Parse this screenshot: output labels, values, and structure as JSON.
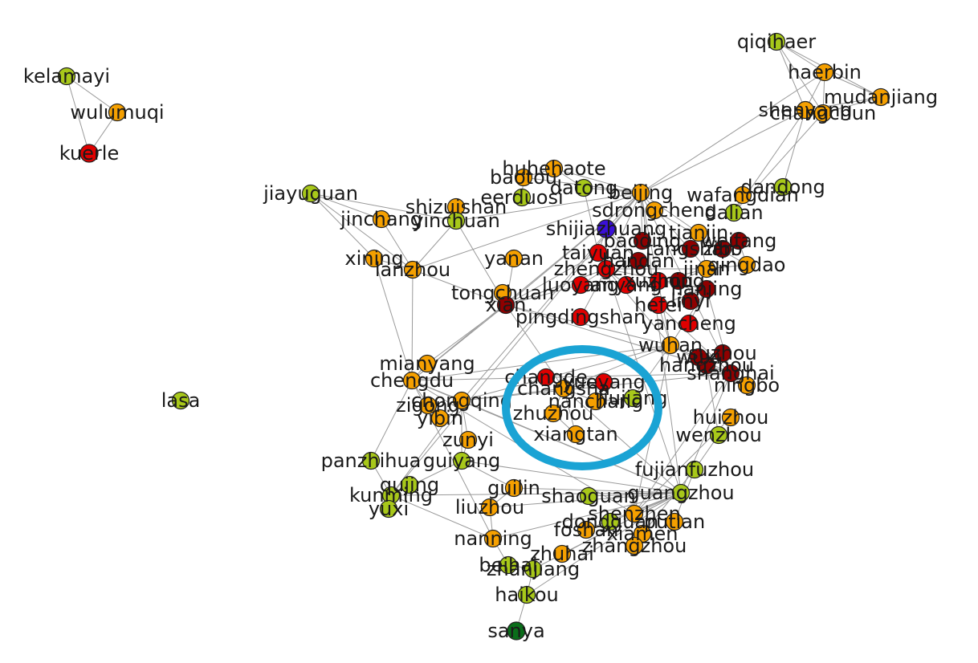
{
  "colors": {
    "edge": "#9a9a9a",
    "red": "#e00000",
    "darkred": "#900000",
    "orange": "#f5a000",
    "yellowgreen": "#a8c81a",
    "blue": "#3a10d8",
    "green": "#0a6e1a",
    "highlight": "#1aa3d4"
  },
  "nodes": [
    {
      "label": "kelamayi",
      "color": "yellowgreen"
    },
    {
      "label": "wulumuqi",
      "color": "orange"
    },
    {
      "label": "kuerle",
      "color": "red"
    },
    {
      "label": "jiayuguan",
      "color": "yellowgreen"
    },
    {
      "label": "lasa",
      "color": "yellowgreen"
    },
    {
      "label": "qiqihaer",
      "color": "yellowgreen"
    },
    {
      "label": "haerbin",
      "color": "orange"
    },
    {
      "label": "mudanjiang",
      "color": "orange"
    },
    {
      "label": "changchun",
      "color": "orange"
    },
    {
      "label": "shenyang",
      "color": "orange"
    },
    {
      "label": "huhehaote",
      "color": "orange"
    },
    {
      "label": "baotou",
      "color": "orange"
    },
    {
      "label": "eerduosi",
      "color": "yellowgreen"
    },
    {
      "label": "datong",
      "color": "yellowgreen"
    },
    {
      "label": "beijing",
      "color": "orange"
    },
    {
      "label": "shizuishan",
      "color": "orange"
    },
    {
      "label": "jinchang",
      "color": "orange"
    },
    {
      "label": "yinchuan",
      "color": "yellowgreen"
    },
    {
      "label": "sdrongcheng",
      "color": "orange"
    },
    {
      "label": "wafangdian",
      "color": "orange"
    },
    {
      "label": "dandong",
      "color": "yellowgreen"
    },
    {
      "label": "dalian",
      "color": "yellowgreen"
    },
    {
      "label": "shijiazhuang",
      "color": "blue"
    },
    {
      "label": "xining",
      "color": "orange"
    },
    {
      "label": "lanzhou",
      "color": "orange"
    },
    {
      "label": "yanan",
      "color": "orange"
    },
    {
      "label": "tongchuan",
      "color": "orange"
    },
    {
      "label": "pingdingshan",
      "color": "red"
    },
    {
      "label": "yancheng",
      "color": "red"
    },
    {
      "label": "mianyang",
      "color": "orange"
    },
    {
      "label": "chengdu",
      "color": "orange"
    },
    {
      "label": "chongqing",
      "color": "orange"
    },
    {
      "label": "zigong",
      "color": "orange"
    },
    {
      "label": "yibin",
      "color": "orange"
    },
    {
      "label": "zunyi",
      "color": "orange"
    },
    {
      "label": "guiyang",
      "color": "yellowgreen"
    },
    {
      "label": "panzhihua",
      "color": "yellowgreen"
    },
    {
      "label": "kunming",
      "color": "yellowgreen"
    },
    {
      "label": "qujing",
      "color": "yellowgreen"
    },
    {
      "label": "yuxi",
      "color": "yellowgreen"
    },
    {
      "label": "changde",
      "color": "red"
    },
    {
      "label": "yueyang",
      "color": "red"
    },
    {
      "label": "changsha",
      "color": "orange"
    },
    {
      "label": "jiujiang",
      "color": "yellowgreen"
    },
    {
      "label": "nanchang",
      "color": "orange"
    },
    {
      "label": "zhuzhou",
      "color": "orange"
    },
    {
      "label": "xiangtan",
      "color": "orange"
    },
    {
      "label": "wenzhou",
      "color": "yellowgreen"
    },
    {
      "label": "fujianfuzhou",
      "color": "yellowgreen"
    },
    {
      "label": "guangzhou",
      "color": "yellowgreen"
    },
    {
      "label": "shaoguan",
      "color": "yellowgreen"
    },
    {
      "label": "guilin",
      "color": "orange"
    },
    {
      "label": "liuzhou",
      "color": "orange"
    },
    {
      "label": "nanning",
      "color": "orange"
    },
    {
      "label": "beihai",
      "color": "yellowgreen"
    },
    {
      "label": "zhanjiang",
      "color": "yellowgreen"
    },
    {
      "label": "haikou",
      "color": "yellowgreen"
    },
    {
      "label": "sanya",
      "color": "green"
    },
    {
      "label": "shenzhen",
      "color": "orange"
    },
    {
      "label": "putian",
      "color": "orange"
    },
    {
      "label": "xiamen",
      "color": "orange"
    },
    {
      "label": "foshan",
      "color": "orange"
    },
    {
      "label": "dongguan",
      "color": "yellowgreen"
    },
    {
      "label": "zhuhai",
      "color": "orange"
    },
    {
      "label": "zhangzhou",
      "color": "orange"
    },
    {
      "label": "huizhou",
      "color": "orange"
    },
    {
      "label": "jinan",
      "color": "orange"
    },
    {
      "label": "qingdao",
      "color": "orange"
    },
    {
      "label": "tianjin",
      "color": "orange"
    },
    {
      "label": "zibo",
      "color": "darkred"
    },
    {
      "label": "weifang",
      "color": "darkred"
    },
    {
      "label": "zhengzhou",
      "color": "red"
    },
    {
      "label": "luoyang",
      "color": "red"
    },
    {
      "label": "xian",
      "color": "darkred"
    },
    {
      "label": "hefei",
      "color": "red"
    },
    {
      "label": "nanjing",
      "color": "darkred"
    },
    {
      "label": "wuhan",
      "color": "orange"
    },
    {
      "label": "suzhou",
      "color": "darkred"
    },
    {
      "label": "hangzhou",
      "color": "darkred"
    },
    {
      "label": "shanghai",
      "color": "darkred"
    },
    {
      "label": "ningbo",
      "color": "orange"
    },
    {
      "label": "wuxi",
      "color": "darkred"
    },
    {
      "label": "xuzhou",
      "color": "red"
    },
    {
      "label": "taiyuan",
      "color": "red"
    },
    {
      "label": "anyang",
      "color": "red"
    },
    {
      "label": "handan",
      "color": "darkred"
    },
    {
      "label": "baoding",
      "color": "darkred"
    },
    {
      "label": "tangshan",
      "color": "darkred"
    },
    {
      "label": "jining",
      "color": "darkred"
    },
    {
      "label": "linyi",
      "color": "darkred"
    }
  ],
  "edges": [
    [
      "kelamayi",
      "wulumuqi"
    ],
    [
      "kelamayi",
      "kuerle"
    ],
    [
      "wulumuqi",
      "kuerle"
    ],
    [
      "qiqihaer",
      "haerbin"
    ],
    [
      "qiqihaer",
      "changchun"
    ],
    [
      "qiqihaer",
      "mudanjiang"
    ],
    [
      "qiqihaer",
      "shenyang"
    ],
    [
      "haerbin",
      "changchun"
    ],
    [
      "haerbin",
      "mudanjiang"
    ],
    [
      "changchun",
      "mudanjiang"
    ],
    [
      "haerbin",
      "shenyang"
    ],
    [
      "changchun",
      "shenyang"
    ],
    [
      "mudanjiang",
      "shenyang"
    ],
    [
      "haerbin",
      "beijing"
    ],
    [
      "changchun",
      "dalian"
    ],
    [
      "shenyang",
      "dalian"
    ],
    [
      "shenyang",
      "beijing"
    ],
    [
      "dandong",
      "shenyang"
    ],
    [
      "wafangdian",
      "dalian"
    ],
    [
      "jiayuguan",
      "jinchang"
    ],
    [
      "jiayuguan",
      "lanzhou"
    ],
    [
      "jiayuguan",
      "yinchuan"
    ],
    [
      "jiayuguan",
      "xining"
    ],
    [
      "jinchang",
      "lanzhou"
    ],
    [
      "xining",
      "lanzhou"
    ],
    [
      "lanzhou",
      "yinchuan"
    ],
    [
      "lanzhou",
      "xian"
    ],
    [
      "lanzhou",
      "chengdu"
    ],
    [
      "lanzhou",
      "beijing"
    ],
    [
      "xining",
      "chengdu"
    ],
    [
      "shizuishan",
      "yinchuan"
    ],
    [
      "yinchuan",
      "beijing"
    ],
    [
      "yinchuan",
      "xian"
    ],
    [
      "huhehaote",
      "beijing"
    ],
    [
      "baotou",
      "beijing"
    ],
    [
      "baotou",
      "huhehaote"
    ],
    [
      "eerduosi",
      "baotou"
    ],
    [
      "datong",
      "beijing"
    ],
    [
      "datong",
      "taiyuan"
    ],
    [
      "huhehaote",
      "datong"
    ],
    [
      "beijing",
      "shijiazhuang"
    ],
    [
      "beijing",
      "tianjin"
    ],
    [
      "beijing",
      "jinan"
    ],
    [
      "beijing",
      "shanghai"
    ],
    [
      "beijing",
      "guangzhou"
    ],
    [
      "beijing",
      "wuhan"
    ],
    [
      "beijing",
      "zhengzhou"
    ],
    [
      "shijiazhuang",
      "taiyuan"
    ],
    [
      "shijiazhuang",
      "zhengzhou"
    ],
    [
      "tianjin",
      "jinan"
    ],
    [
      "jinan",
      "qingdao"
    ],
    [
      "zibo",
      "weifang"
    ],
    [
      "weifang",
      "qingdao"
    ],
    [
      "jinan",
      "xuzhou"
    ],
    [
      "xuzhou",
      "nanjing"
    ],
    [
      "nanjing",
      "shanghai"
    ],
    [
      "suzhou",
      "shanghai"
    ],
    [
      "wuxi",
      "suzhou"
    ],
    [
      "hangzhou",
      "shanghai"
    ],
    [
      "ningbo",
      "hangzhou"
    ],
    [
      "wenzhou",
      "hangzhou"
    ],
    [
      "fujianfuzhou",
      "wenzhou"
    ],
    [
      "fujianfuzhou",
      "xiamen"
    ],
    [
      "xiamen",
      "zhangzhou"
    ],
    [
      "putian",
      "fujianfuzhou"
    ],
    [
      "xiamen",
      "shenzhen"
    ],
    [
      "shenzhen",
      "guangzhou"
    ],
    [
      "guangzhou",
      "foshan"
    ],
    [
      "guangzhou",
      "dongguan"
    ],
    [
      "zhuhai",
      "guangzhou"
    ],
    [
      "huizhou",
      "shenzhen"
    ],
    [
      "shaoguan",
      "guangzhou"
    ],
    [
      "changsha",
      "guangzhou"
    ],
    [
      "wuhan",
      "changsha"
    ],
    [
      "changsha",
      "zhuzhou"
    ],
    [
      "zhuzhou",
      "xiangtan"
    ],
    [
      "xiangtan",
      "changsha"
    ],
    [
      "yueyang",
      "changsha"
    ],
    [
      "changde",
      "changsha"
    ],
    [
      "jiujiang",
      "nanchang"
    ],
    [
      "nanchang",
      "changsha"
    ],
    [
      "wuhan",
      "jiujiang"
    ],
    [
      "wuhan",
      "zhengzhou"
    ],
    [
      "zhengzhou",
      "luoyang"
    ],
    [
      "luoyang",
      "xian"
    ],
    [
      "xian",
      "zhengzhou"
    ],
    [
      "xian",
      "chengdu"
    ],
    [
      "xian",
      "yanan"
    ],
    [
      "xian",
      "tongchuan"
    ],
    [
      "chengdu",
      "chongqing"
    ],
    [
      "chengdu",
      "mianyang"
    ],
    [
      "chengdu",
      "zigong"
    ],
    [
      "zigong",
      "yibin"
    ],
    [
      "chongqing",
      "zunyi"
    ],
    [
      "zunyi",
      "guiyang"
    ],
    [
      "guiyang",
      "kunming"
    ],
    [
      "kunming",
      "qujing"
    ],
    [
      "kunming",
      "yuxi"
    ],
    [
      "panzhihua",
      "kunming"
    ],
    [
      "panzhihua",
      "chengdu"
    ],
    [
      "guiyang",
      "guilin"
    ],
    [
      "guilin",
      "liuzhou"
    ],
    [
      "liuzhou",
      "nanning"
    ],
    [
      "nanning",
      "beihai"
    ],
    [
      "beihai",
      "zhanjiang"
    ],
    [
      "zhanjiang",
      "haikou"
    ],
    [
      "haikou",
      "sanya"
    ],
    [
      "nanning",
      "guangzhou"
    ],
    [
      "guilin",
      "guangzhou"
    ],
    [
      "haikou",
      "guangzhou"
    ],
    [
      "zhanjiang",
      "guangzhou"
    ],
    [
      "chongqing",
      "wuhan"
    ],
    [
      "chongqing",
      "changsha"
    ],
    [
      "kunming",
      "guangzhou"
    ],
    [
      "kunming",
      "nanning"
    ],
    [
      "hefei",
      "nanjing"
    ],
    [
      "hefei",
      "wuhan"
    ],
    [
      "hefei",
      "shanghai"
    ],
    [
      "pingdingshan",
      "zhengzhou"
    ],
    [
      "yancheng",
      "nanjing"
    ],
    [
      "anyang",
      "zhengzhou"
    ],
    [
      "handan",
      "shijiazhuang"
    ],
    [
      "baoding",
      "beijing"
    ],
    [
      "tangshan",
      "tianjin"
    ],
    [
      "jining",
      "jinan"
    ],
    [
      "linyi",
      "jinan"
    ],
    [
      "sdrongcheng",
      "qingdao"
    ],
    [
      "shanghai",
      "guangzhou"
    ],
    [
      "shanghai",
      "shenzhen"
    ],
    [
      "beijing",
      "chengdu"
    ],
    [
      "beijing",
      "xian"
    ],
    [
      "beijing",
      "chongqing"
    ],
    [
      "beijing",
      "kunming"
    ],
    [
      "shanghai",
      "chengdu"
    ],
    [
      "shanghai",
      "xian"
    ],
    [
      "shanghai",
      "chongqing"
    ],
    [
      "shanghai",
      "wuhan"
    ],
    [
      "guangzhou",
      "chengdu"
    ],
    [
      "guangzhou",
      "chongqing"
    ],
    [
      "shenzhen",
      "chengdu"
    ],
    [
      "shenzhen",
      "wuhan"
    ],
    [
      "wuhan",
      "xian"
    ],
    [
      "wuhan",
      "chengdu"
    ],
    [
      "nanjing",
      "wuhan"
    ],
    [
      "hangzhou",
      "wuhan"
    ],
    [
      "changsha",
      "xian"
    ],
    [
      "zhengzhou",
      "jinan"
    ],
    [
      "zhengzhou",
      "nanjing"
    ],
    [
      "zhengzhou",
      "guangzhou"
    ],
    [
      "taiyuan",
      "xian"
    ],
    [
      "taiyuan",
      "zhengzhou"
    ],
    [
      "kunming",
      "chongqing"
    ],
    [
      "guiyang",
      "chongqing"
    ],
    [
      "guiyang",
      "guangzhou"
    ],
    [
      "nanning",
      "chengdu"
    ],
    [
      "liuzhou",
      "guangzhou"
    ],
    [
      "mianyang",
      "xian"
    ],
    [
      "lasa",
      "lasa"
    ]
  ]
}
